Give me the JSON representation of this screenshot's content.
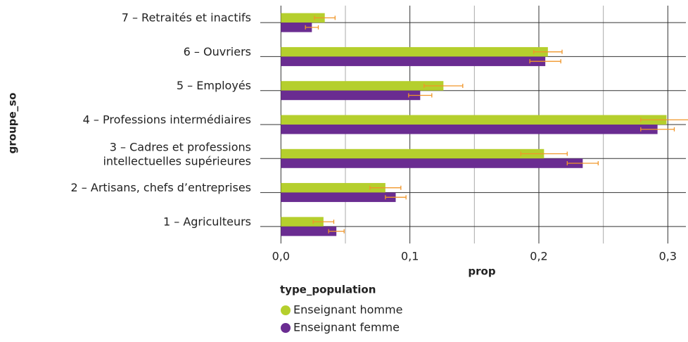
{
  "chart_data": {
    "type": "hbar",
    "categories": [
      "7 – Retraités et inactifs",
      "6 – Ouvriers",
      "5 – Employés",
      "4 – Professions intermédiaires",
      "3 – Cadres et professions\nintellectuelles supérieures",
      "2 – Artisans, chefs d’entreprises",
      "1 – Agriculteurs"
    ],
    "series": [
      {
        "name": "Enseignant homme",
        "color": "#b5cf2d",
        "values": [
          0.034,
          0.207,
          0.126,
          0.299,
          0.204,
          0.081,
          0.033
        ],
        "errors": [
          0.008,
          0.011,
          0.015,
          0.02,
          0.018,
          0.012,
          0.008
        ]
      },
      {
        "name": "Enseignant femme",
        "color": "#6a2c91",
        "values": [
          0.024,
          0.205,
          0.108,
          0.292,
          0.234,
          0.089,
          0.043
        ],
        "errors": [
          0.005,
          0.012,
          0.009,
          0.013,
          0.012,
          0.008,
          0.006
        ]
      }
    ],
    "error_color": "#f0962a",
    "xlim": [
      -0.016,
      0.314
    ],
    "xticks": [
      {
        "value": 0,
        "label": "0,0"
      },
      {
        "value": 0.1,
        "label": "0,1"
      },
      {
        "value": 0.2,
        "label": "0,2"
      },
      {
        "value": 0.3,
        "label": "0,3"
      }
    ],
    "xminorticks": [
      0.05,
      0.15,
      0.25
    ],
    "xlabel": "prop",
    "ylabel": "groupe_so",
    "legend_title": "type_population",
    "grid": true
  }
}
